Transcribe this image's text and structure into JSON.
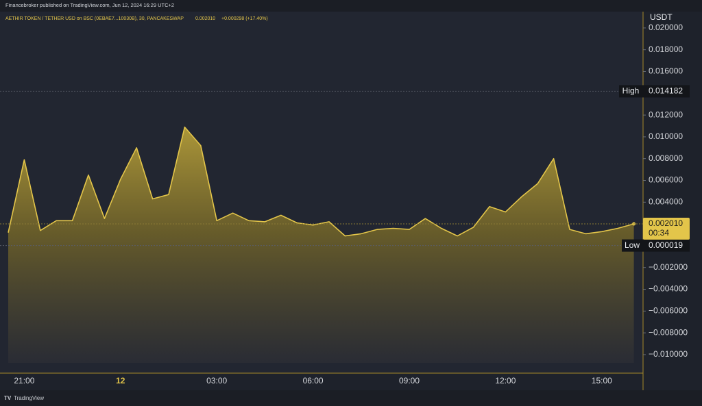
{
  "header": {
    "publisher": "Financebroker published on TradingView.com, Jun 12, 2024 16:29 UTC+2"
  },
  "footer": {
    "brand": "TradingView"
  },
  "chart_data": {
    "type": "area",
    "legend_text": "AETHIR TOKEN / TETHER USD on BSC (0EBAE7...10030B), 30, PANCAKESWAP",
    "legend_values": [
      "0.002010",
      "+0.000298 (+17.40%)"
    ],
    "y_axis_label": "USDT",
    "categories": [
      null,
      "21:00",
      null,
      null,
      null,
      null,
      null,
      "12",
      null,
      null,
      null,
      null,
      null,
      "03:00",
      null,
      null,
      null,
      null,
      null,
      "06:00",
      null,
      null,
      null,
      null,
      null,
      "09:00",
      null,
      null,
      null,
      null,
      null,
      "12:00",
      null,
      null,
      null,
      null,
      null,
      "15:00",
      null,
      null
    ],
    "series": [
      {
        "color": "#e3c54a",
        "values": [
          0.0012,
          0.0079,
          0.0014,
          0.0023,
          0.0023,
          0.0065,
          0.0025,
          0.0061,
          0.009,
          0.0043,
          0.0047,
          0.0109,
          0.0092,
          0.0023,
          0.003,
          0.0023,
          0.0022,
          0.0028,
          0.0021,
          0.0019,
          0.0022,
          0.0009,
          0.0011,
          0.0015,
          0.0016,
          0.0015,
          0.0025,
          0.0016,
          0.0009,
          0.0017,
          0.0036,
          0.0031,
          0.0045,
          0.0057,
          0.008,
          0.0015,
          0.0011,
          0.0013,
          0.0016,
          0.00201
        ]
      }
    ],
    "ylim": [
      -0.0117,
      0.0215
    ],
    "yticks": [
      {
        "value": 0.02,
        "label": "0.020000"
      },
      {
        "value": 0.018,
        "label": "0.018000"
      },
      {
        "value": 0.016,
        "label": "0.016000"
      },
      {
        "value": 0.012,
        "label": "0.012000"
      },
      {
        "value": 0.01,
        "label": "0.010000"
      },
      {
        "value": 0.008,
        "label": "0.008000"
      },
      {
        "value": 0.006,
        "label": "0.006000"
      },
      {
        "value": 0.004,
        "label": "0.004000"
      },
      {
        "value": -0.002,
        "label": "−0.002000"
      },
      {
        "value": -0.004,
        "label": "−0.004000"
      },
      {
        "value": -0.006,
        "label": "−0.006000"
      },
      {
        "value": -0.008,
        "label": "−0.008000"
      },
      {
        "value": -0.01,
        "label": "−0.010000"
      }
    ],
    "high": {
      "label": "High",
      "value": 0.014182
    },
    "low": {
      "label": "Low",
      "value": 1.9e-05
    },
    "last": {
      "value": 0.00201,
      "label": "0.002010",
      "countdown": "00:34"
    },
    "grid": false
  }
}
